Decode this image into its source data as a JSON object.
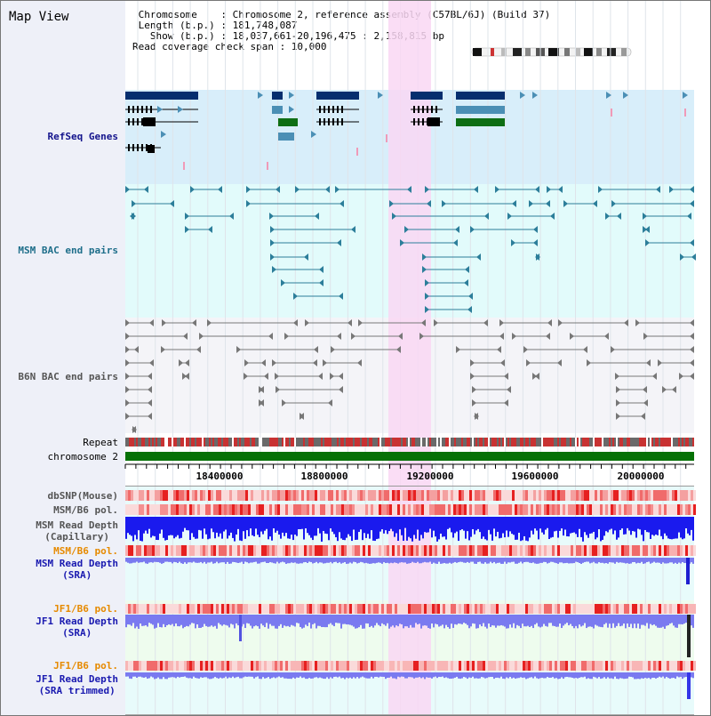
{
  "page_title": "Map View",
  "info": {
    "line1": " Chromosome    : Chromosome 2, reference assembly (C57BL/6J) (Build 37)",
    "line2": " Length (b.p.) : 181,748,087",
    "line3": "   Show (b.p.) : 18,037,661-20,196,475 : 2,158,815 bp",
    "line4": "Read coverage check span : 10,000"
  },
  "tracks": {
    "refseq": "RefSeq Genes",
    "msm_bac": "MSM BAC end pairs",
    "b6n_bac": "B6N BAC end pairs",
    "repeat": "Repeat",
    "chromosome": "chromosome 2",
    "dbsnp": "dbSNP(Mouse)",
    "msm_b6_pol_1": "MSM/B6 pol.",
    "msm_depth_cap": [
      "MSM Read Depth",
      "(Capillary)"
    ],
    "msm_b6_pol_2": "MSM/B6 pol.",
    "msm_depth_sra": [
      "MSM Read Depth",
      "(SRA)"
    ],
    "jf1_b6_pol_1": "JF1/B6 pol.",
    "jf1_depth_sra": [
      "JF1 Read Depth",
      "(SRA)"
    ],
    "jf1_b6_pol_2": "JF1/B6 pol.",
    "jf1_depth_trim": [
      "JF1 Read Depth",
      "(SRA trimmed)"
    ]
  },
  "axis_ticks": [
    "18400000",
    "18800000",
    "19200000",
    "19600000",
    "20000000"
  ],
  "colors": {
    "refseq_bg": "#d8eefa",
    "msm_bg": "#e2fbfb",
    "b6n_bg": "#f4f4f8",
    "highlight": "#f9d7f3",
    "gene_dark": "#062e6e",
    "gene_teal": "#4b8fb5",
    "gene_green": "#0e6e14",
    "bac_teal": "#2c7e9a",
    "bac_gray": "#777777",
    "chrom_green": "#067106",
    "snp_red": "#e83a3a",
    "depth_blue": "#1a1aee",
    "depth_lightblue": "#7a7af0"
  }
}
